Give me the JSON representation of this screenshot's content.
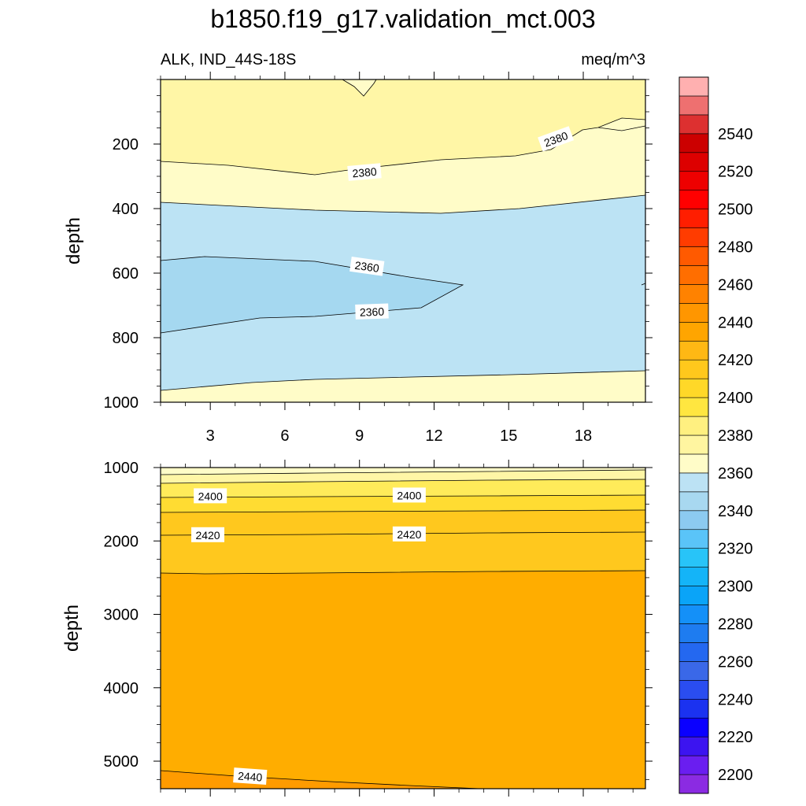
{
  "chart_data": {
    "type": "contour",
    "title": "b1850.f19_g17.validation_mct.003",
    "left_label": "ALK, IND_44S-18S",
    "right_label": "meq/m^3",
    "panels": [
      {
        "name": "upper",
        "ylabel": "depth",
        "xlim": [
          1,
          20.5
        ],
        "ylim": [
          0,
          1000
        ],
        "y_inverted": true,
        "x_ticks": [
          3,
          6,
          9,
          12,
          15,
          18
        ],
        "x_tick_labels": [
          "3",
          "6",
          "9",
          "12",
          "15",
          "18"
        ],
        "y_ticks": [
          200,
          400,
          600,
          800,
          1000
        ],
        "y_tick_labels": [
          "200",
          "400",
          "600",
          "800",
          "1000"
        ],
        "contour_labels": [
          {
            "text": "2380",
            "x": 16.9,
            "y": 185,
            "angle": -20
          },
          {
            "text": "2380",
            "x": 9.2,
            "y": 288,
            "angle": -5
          },
          {
            "text": "2360",
            "x": 9.3,
            "y": 580,
            "angle": 8
          },
          {
            "text": "2360",
            "x": 9.5,
            "y": 720,
            "angle": -2
          }
        ]
      },
      {
        "name": "lower",
        "ylabel": "depth",
        "xlim": [
          1,
          20.5
        ],
        "ylim": [
          1000,
          5375
        ],
        "y_inverted": true,
        "y_ticks": [
          1000,
          2000,
          3000,
          4000,
          5000
        ],
        "y_tick_labels": [
          "1000",
          "2000",
          "3000",
          "4000",
          "5000"
        ],
        "contour_labels": [
          {
            "text": "2400",
            "x": 3.0,
            "y": 1390,
            "angle": 0
          },
          {
            "text": "2400",
            "x": 11.0,
            "y": 1380,
            "angle": 0
          },
          {
            "text": "2420",
            "x": 2.9,
            "y": 1920,
            "angle": 0
          },
          {
            "text": "2420",
            "x": 11.0,
            "y": 1910,
            "angle": 0
          },
          {
            "text": "2440",
            "x": 4.6,
            "y": 5210,
            "angle": 4
          }
        ]
      }
    ],
    "colorbar": {
      "levels": [
        2200,
        2220,
        2240,
        2260,
        2280,
        2300,
        2320,
        2340,
        2360,
        2380,
        2400,
        2420,
        2440,
        2460,
        2480,
        2500,
        2520,
        2540
      ],
      "labels": [
        "2200",
        "2220",
        "2240",
        "2260",
        "2280",
        "2300",
        "2320",
        "2340",
        "2360",
        "2380",
        "2400",
        "2420",
        "2440",
        "2460",
        "2480",
        "2500",
        "2520",
        "2540"
      ],
      "colors": [
        "#8b2be2",
        "#6a1ef0",
        "#3c14f0",
        "#0a00ff",
        "#1b32f0",
        "#2a4df0",
        "#3a68e8",
        "#2468f0",
        "#1e7cf0",
        "#1490f8",
        "#0aa4f8",
        "#14b4f8",
        "#28c4f8",
        "#5ac4f8",
        "#8ccaf0",
        "#a8d8f0",
        "#bce2f4",
        "#fffcc8",
        "#fff5a0",
        "#fff080",
        "#ffe640",
        "#ffd828",
        "#ffc81c",
        "#ffb814",
        "#ffa500",
        "#ff9600",
        "#ff8200",
        "#ff6e00",
        "#ff5a00",
        "#ff3c00",
        "#ff1e00",
        "#ff0000",
        "#ee0000",
        "#dd0000",
        "#cc0000",
        "#dd3030",
        "#ee7070",
        "#ffb0b0"
      ]
    },
    "field_colors": {
      "lt2360": "#a5d8f0",
      "r2360": "#bce3f4",
      "r2380": "#fffcc8",
      "r2385": "#fff6a6",
      "r2400": "#ffeb5a",
      "r2410": "#ffdc32",
      "r2420": "#ffc81e",
      "r2430": "#ffad00",
      "r2440": "#ff9b00"
    }
  }
}
